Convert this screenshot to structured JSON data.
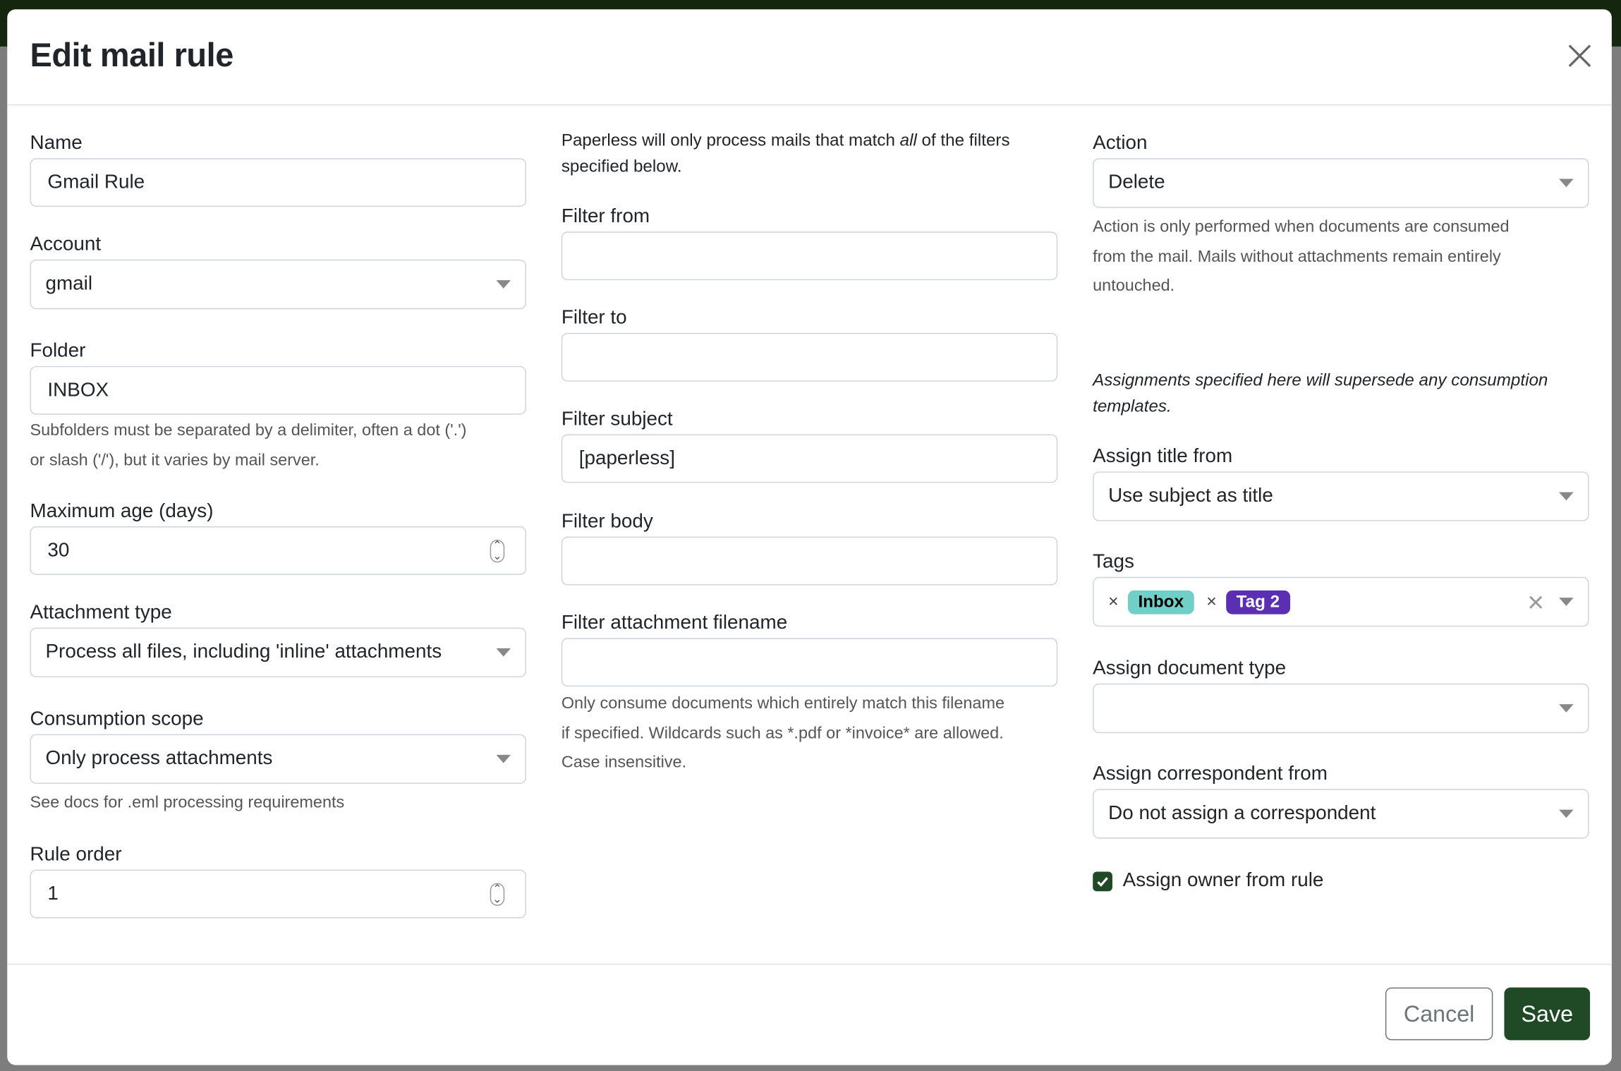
{
  "dialog": {
    "title": "Edit mail rule",
    "close_icon": "close-icon"
  },
  "left": {
    "name": {
      "label": "Name",
      "value": "Gmail Rule"
    },
    "account": {
      "label": "Account",
      "value": "gmail"
    },
    "folder": {
      "label": "Folder",
      "value": "INBOX",
      "help_1": "Subfolders must be separated by a delimiter, often a dot ('.')",
      "help_2": "or slash ('/'), but it varies by mail server."
    },
    "max_age": {
      "label": "Maximum age (days)",
      "value": "30"
    },
    "attachment_type": {
      "label": "Attachment type",
      "value": "Process all files, including 'inline' attachments"
    },
    "consumption_scope": {
      "label": "Consumption scope",
      "value": "Only process attachments",
      "help": "See docs for .eml processing requirements"
    },
    "rule_order": {
      "label": "Rule order",
      "value": "1"
    }
  },
  "middle": {
    "intro_pre": "Paperless will only process mails that match ",
    "intro_em": "all",
    "intro_post": " of the filters",
    "intro_2": "specified below.",
    "filter_from": {
      "label": "Filter from",
      "value": ""
    },
    "filter_to": {
      "label": "Filter to",
      "value": ""
    },
    "filter_subject": {
      "label": "Filter subject",
      "value": "[paperless]"
    },
    "filter_body": {
      "label": "Filter body",
      "value": ""
    },
    "filter_attachment": {
      "label": "Filter attachment filename",
      "value": "",
      "help_1": "Only consume documents which entirely match this filename",
      "help_2": "if specified. Wildcards such as *.pdf or *invoice* are allowed.",
      "help_3": "Case insensitive."
    }
  },
  "right": {
    "action": {
      "label": "Action",
      "value": "Delete",
      "help_1": "Action is only performed when documents are consumed",
      "help_2": "from the mail. Mails without attachments remain entirely",
      "help_3": "untouched."
    },
    "assign_note_1": "Assignments specified here will supersede any consumption",
    "assign_note_2": "templates.",
    "title_from": {
      "label": "Assign title from",
      "value": "Use subject as title"
    },
    "tags": {
      "label": "Tags",
      "items": [
        {
          "name": "Inbox",
          "color": "#70cfc6",
          "text_color": "#000000"
        },
        {
          "name": "Tag 2",
          "color": "#5a2fb2",
          "text_color": "#ffffff"
        }
      ],
      "remove_glyph": "×"
    },
    "document_type": {
      "label": "Assign document type",
      "value": ""
    },
    "correspondent": {
      "label": "Assign correspondent from",
      "value": "Do not assign a correspondent"
    },
    "owner": {
      "label": "Assign owner from rule",
      "checked": true
    }
  },
  "footer": {
    "cancel": "Cancel",
    "save": "Save"
  },
  "colors": {
    "primary": "#1f4a25",
    "topbar": "#15260f"
  }
}
